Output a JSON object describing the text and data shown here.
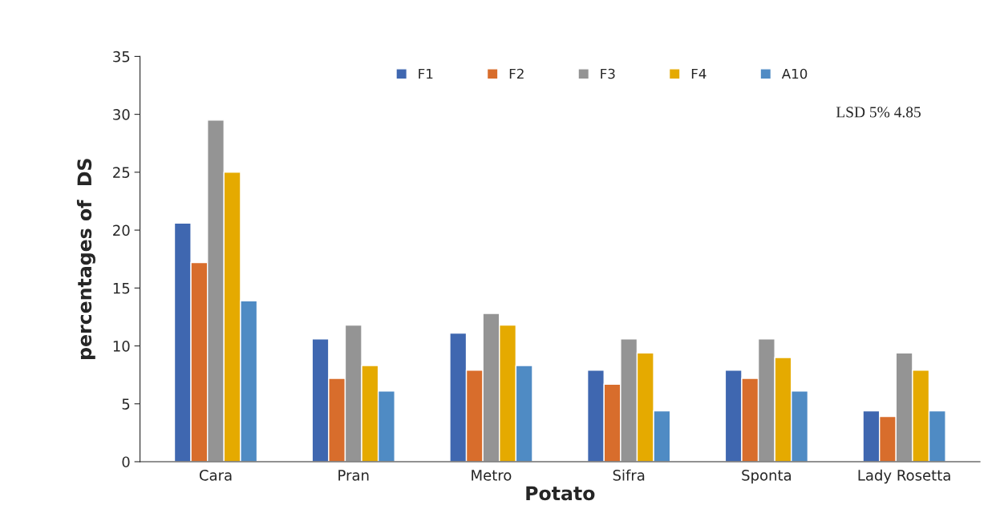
{
  "chart_data": {
    "type": "bar",
    "xlabel": "Potato",
    "ylabel": "percentages of  DS",
    "categories": [
      "Cara",
      "Pran",
      "Metro",
      "Sifra",
      "Sponta",
      "Lady Rosetta"
    ],
    "series": [
      {
        "name": "F1",
        "color": "#3f67b0",
        "values": [
          20.6,
          10.6,
          11.1,
          7.9,
          7.9,
          4.4
        ]
      },
      {
        "name": "F2",
        "color": "#d86d2c",
        "values": [
          17.2,
          7.2,
          7.9,
          6.7,
          7.2,
          3.9
        ]
      },
      {
        "name": "F3",
        "color": "#949494",
        "values": [
          29.5,
          11.8,
          12.8,
          10.6,
          10.6,
          9.4
        ]
      },
      {
        "name": "F4",
        "color": "#e5aa00",
        "values": [
          25.0,
          8.3,
          11.8,
          9.4,
          9.0,
          7.9
        ]
      },
      {
        "name": "A10",
        "color": "#4f8bc4",
        "values": [
          13.9,
          6.1,
          8.3,
          4.4,
          6.1,
          4.4
        ]
      }
    ],
    "ylim": [
      0,
      35
    ],
    "yticks": [
      0,
      5,
      10,
      15,
      20,
      25,
      30,
      35
    ],
    "grid": false,
    "legend": "top",
    "annotations": [
      "LSD 5% 4.85"
    ]
  }
}
